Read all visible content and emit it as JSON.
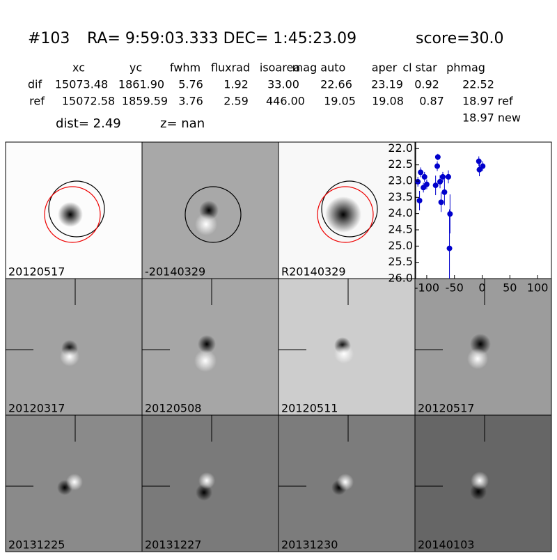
{
  "header": {
    "id": "#103",
    "coords": "RA= 9:59:03.333 DEC= 1:45:23.09",
    "score": "score=30.0"
  },
  "table": {
    "columns": [
      "xc",
      "yc",
      "fwhm",
      "fluxrad",
      "isoarea",
      "mag auto",
      "aper",
      "cl star",
      "phmag"
    ],
    "rows": [
      [
        "dif",
        "15073.48",
        "1861.90",
        "5.76",
        "1.92",
        "33.00",
        "22.66",
        "23.19",
        "0.92",
        "22.52"
      ],
      [
        "ref",
        "15072.58",
        "1859.59",
        "3.76",
        "2.59",
        "446.00",
        "19.05",
        "19.08",
        "0.87",
        "18.97 ref"
      ]
    ],
    "extra": "18.97 new"
  },
  "summary": {
    "dist": "dist=  2.49",
    "z": "z=   nan"
  },
  "panels": [
    {
      "label": "20120517"
    },
    {
      "label": "-20140329"
    },
    {
      "label": "R20140329"
    },
    {
      "label": "20120317"
    },
    {
      "label": "20120508"
    },
    {
      "label": "20120511"
    },
    {
      "label": "20120517"
    },
    {
      "label": "20131225"
    },
    {
      "label": "20131227"
    },
    {
      "label": "20131230"
    },
    {
      "label": "20140103"
    }
  ],
  "chart_data": {
    "type": "scatter",
    "color": "#0000cc",
    "x": [
      -116,
      -113,
      -111,
      -106,
      -104,
      -100,
      -84,
      -81,
      -80,
      -76,
      -74,
      -71,
      -68,
      -61,
      -58,
      -59,
      -6,
      -5,
      1
    ],
    "values": [
      23.02,
      23.6,
      22.73,
      23.2,
      22.87,
      23.1,
      23.13,
      22.54,
      22.26,
      23.02,
      23.65,
      22.87,
      23.34,
      22.87,
      24.01,
      25.07,
      22.39,
      22.65,
      22.54
    ],
    "errors": [
      0.15,
      0.3,
      0.15,
      0.15,
      0.15,
      0.15,
      0.3,
      0.15,
      0.1,
      0.2,
      0.3,
      0.15,
      0.4,
      0.2,
      0.6,
      1.2,
      0.15,
      0.2,
      0.15
    ],
    "xlim": [
      -120,
      125
    ],
    "ylim": [
      21.8,
      26
    ],
    "y_inverted": true,
    "xticks": [
      -100,
      -50,
      0,
      50,
      100
    ],
    "yticks": [
      {
        "value": 22,
        "label": "22.0"
      },
      {
        "value": 22.5,
        "label": "22.5"
      },
      {
        "value": 23,
        "label": "23.0"
      },
      {
        "value": 23.5,
        "label": "23.5"
      },
      {
        "value": 24,
        "label": "24.0"
      },
      {
        "value": 24.5,
        "label": "24.5"
      },
      {
        "value": 25,
        "label": "25.0"
      },
      {
        "value": 25.5,
        "label": "25.5"
      },
      {
        "value": 26,
        "label": "26.0"
      }
    ]
  }
}
